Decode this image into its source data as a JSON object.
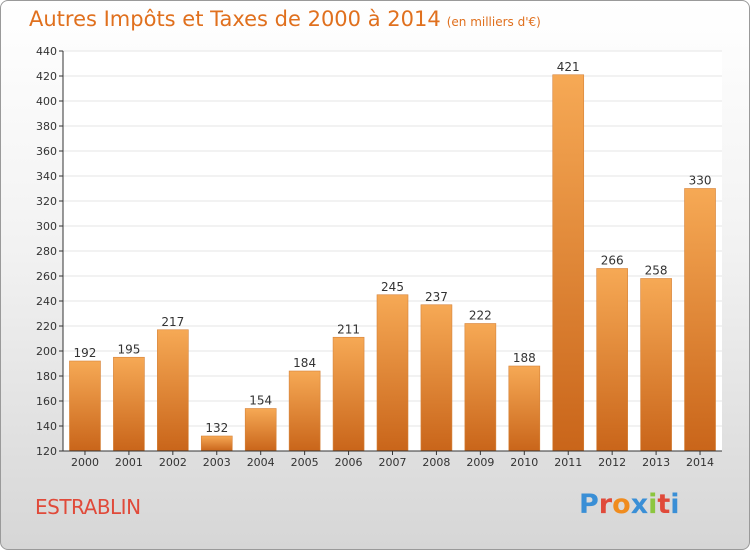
{
  "chart_data": {
    "type": "bar",
    "title": "Autres Impôts et Taxes de 2000 à 2014",
    "subtitle": "(en milliers d'€)",
    "categories": [
      "2000",
      "2001",
      "2002",
      "2003",
      "2004",
      "2005",
      "2006",
      "2007",
      "2008",
      "2009",
      "2010",
      "2011",
      "2012",
      "2013",
      "2014"
    ],
    "values": [
      192,
      195,
      217,
      132,
      154,
      184,
      211,
      245,
      237,
      222,
      188,
      421,
      266,
      258,
      330
    ],
    "ylim": [
      120,
      440
    ],
    "yticks": [
      120,
      140,
      160,
      180,
      200,
      220,
      240,
      260,
      280,
      300,
      320,
      340,
      360,
      380,
      400,
      420,
      440
    ],
    "grid": true,
    "colors": {
      "bar_light": "#f6a955",
      "bar_dark": "#c9651a",
      "grid": "#e6e6e6",
      "axis": "#333333",
      "title": "#e0701e"
    }
  },
  "footer": {
    "commune": "ESTRABLIN",
    "logo": "Proxiti",
    "logo_colors": [
      "#3a8fd6",
      "#e04a3a",
      "#f08c1e",
      "#3a8fd6",
      "#8cc63f",
      "#e04a3a",
      "#3a8fd6"
    ]
  }
}
